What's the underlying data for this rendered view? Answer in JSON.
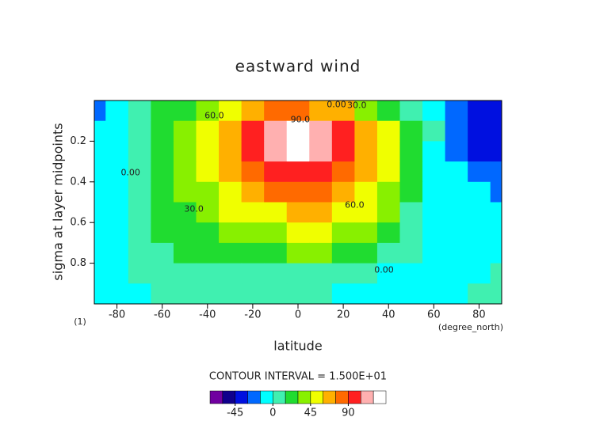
{
  "chart_data": {
    "type": "contour",
    "title": "eastward wind",
    "xlabel": "latitude",
    "ylabel": "sigma at layer midpoints",
    "x_unit": "(degree_north)",
    "corner_label": "(1)",
    "contour_interval_text": "CONTOUR INTERVAL = 1.500E+01",
    "x": [
      -90,
      -80,
      -70,
      -60,
      -50,
      -40,
      -30,
      -20,
      -10,
      0,
      10,
      20,
      30,
      40,
      50,
      60,
      70,
      80,
      90
    ],
    "y": [
      0.05,
      0.15,
      0.25,
      0.35,
      0.45,
      0.55,
      0.65,
      0.75,
      0.85,
      0.95
    ],
    "z": [
      [
        -20,
        -5,
        5,
        15,
        25,
        40,
        55,
        65,
        75,
        75,
        70,
        60,
        40,
        20,
        5,
        -5,
        -20,
        -35,
        -40
      ],
      [
        -10,
        -5,
        5,
        20,
        35,
        50,
        70,
        90,
        110,
        125,
        115,
        95,
        70,
        45,
        20,
        0,
        -20,
        -35,
        -45
      ],
      [
        -5,
        -5,
        5,
        20,
        35,
        50,
        70,
        90,
        105,
        125,
        110,
        95,
        70,
        45,
        20,
        -2,
        -20,
        -35,
        -40
      ],
      [
        -10,
        -5,
        5,
        20,
        35,
        45,
        60,
        75,
        90,
        100,
        95,
        80,
        65,
        45,
        20,
        -2,
        -15,
        -25,
        -30
      ],
      [
        -15,
        -5,
        5,
        20,
        30,
        40,
        50,
        60,
        75,
        80,
        80,
        70,
        55,
        40,
        15,
        -2,
        -10,
        -15,
        -20
      ],
      [
        -15,
        -5,
        5,
        15,
        25,
        35,
        45,
        50,
        55,
        60,
        60,
        55,
        45,
        30,
        10,
        -3,
        -8,
        -10,
        -10
      ],
      [
        -10,
        -5,
        5,
        15,
        20,
        25,
        30,
        35,
        40,
        45,
        45,
        40,
        30,
        20,
        5,
        -3,
        -5,
        -5,
        -5
      ],
      [
        -5,
        -5,
        5,
        10,
        15,
        20,
        20,
        25,
        25,
        30,
        30,
        25,
        20,
        10,
        2,
        -3,
        -3,
        -3,
        -3
      ],
      [
        -5,
        -5,
        2,
        5,
        10,
        10,
        10,
        10,
        10,
        10,
        5,
        3,
        0,
        -3,
        -3,
        -5,
        -5,
        -3,
        0
      ],
      [
        -5,
        -5,
        -3,
        2,
        5,
        5,
        5,
        5,
        5,
        3,
        0,
        -3,
        -5,
        -5,
        -5,
        -5,
        -3,
        2,
        5
      ]
    ],
    "levels": [
      -60,
      -45,
      -30,
      -15,
      0,
      15,
      30,
      45,
      60,
      75,
      90,
      105,
      120
    ],
    "colors": [
      "#7000a0",
      "#10008c",
      "#0010e0",
      "#0068ff",
      "#00ffff",
      "#40f0b0",
      "#20dc30",
      "#88f000",
      "#f0ff00",
      "#ffb000",
      "#ff6a00",
      "#ff2020",
      "#ffb0b0",
      "#ffffff"
    ],
    "xlim": [
      -90,
      90
    ],
    "ylim": [
      0,
      1
    ],
    "xticks": [
      -80,
      -60,
      -40,
      -20,
      0,
      20,
      40,
      60,
      80
    ],
    "yticks": [
      0.2,
      0.4,
      0.6,
      0.8
    ],
    "colorbar_ticks": [
      -45,
      0,
      45,
      90
    ],
    "contour_labels": [
      {
        "label": "0.00",
        "x": 17,
        "y": 0.005
      },
      {
        "label": "30.0",
        "x": 26,
        "y": 0.01
      },
      {
        "label": "60.0",
        "x": -37,
        "y": 0.06
      },
      {
        "label": "90.0",
        "x": 1,
        "y": 0.08
      },
      {
        "label": "0.00",
        "x": -74,
        "y": 0.34
      },
      {
        "label": "30.0",
        "x": -46,
        "y": 0.52
      },
      {
        "label": "60.0",
        "x": 25,
        "y": 0.5
      },
      {
        "label": "0.00",
        "x": 38,
        "y": 0.82
      }
    ]
  }
}
